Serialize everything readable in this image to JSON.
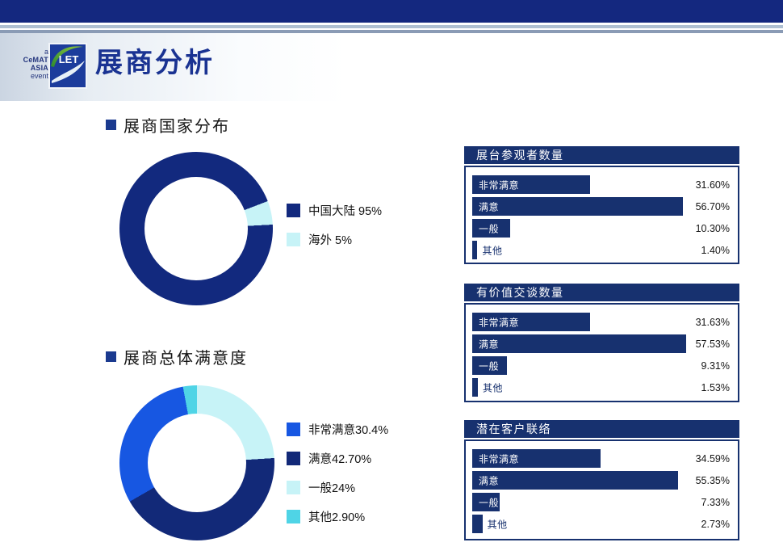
{
  "brand": {
    "prefix": "a",
    "name": "CeMAT ASIA",
    "suffix": "event",
    "badge": "LET"
  },
  "slide_title": "展商分析",
  "sections": {
    "country": "展商国家分布",
    "satisfaction": "展商总体满意度"
  },
  "chart_data": [
    {
      "type": "pie",
      "subtype": "donut",
      "title": "展商国家分布",
      "start_angle": 87,
      "draw_order": [
        0,
        1
      ],
      "slices": [
        {
          "label": "中国大陆",
          "value": 95,
          "display": "中国大陆 95%",
          "color": "#12297E"
        },
        {
          "label": "海外",
          "value": 5,
          "display": "海外 5%",
          "color": "#C7F3F7"
        }
      ]
    },
    {
      "type": "pie",
      "subtype": "donut",
      "title": "展商总体满意度",
      "start_angle": 0,
      "draw_order": [
        2,
        1,
        0,
        3
      ],
      "slices": [
        {
          "label": "非常满意",
          "value": 30.4,
          "display": "非常满意30.4%",
          "color": "#1757E2"
        },
        {
          "label": "满意",
          "value": 42.7,
          "display": "满意42.70%",
          "color": "#122978"
        },
        {
          "label": "一般",
          "value": 24,
          "display": "一般24%",
          "color": "#C7F3F7"
        },
        {
          "label": "其他",
          "value": 2.9,
          "display": "其他2.90%",
          "color": "#4FD4E6"
        }
      ]
    },
    {
      "type": "bar",
      "orientation": "horizontal",
      "title": "展台参观者数量",
      "categories": [
        "非常满意",
        "满意",
        "一般",
        "其他"
      ],
      "values": [
        31.6,
        56.7,
        10.3,
        1.4
      ],
      "value_labels": [
        "31.60%",
        "56.70%",
        "10.30%",
        "1.40%"
      ],
      "xlim": [
        0,
        71.4
      ],
      "bar_color": "#17316F"
    },
    {
      "type": "bar",
      "orientation": "horizontal",
      "title": "有价值交谈数量",
      "categories": [
        "非常满意",
        "满意",
        "一般",
        "其他"
      ],
      "values": [
        31.63,
        57.53,
        9.31,
        1.53
      ],
      "value_labels": [
        "31.63%",
        "57.53%",
        "9.31%",
        "1.53%"
      ],
      "xlim": [
        0,
        71.4
      ],
      "bar_color": "#17316F"
    },
    {
      "type": "bar",
      "orientation": "horizontal",
      "title": "潜在客户联络",
      "categories": [
        "非常满意",
        "满意",
        "一般",
        "其他"
      ],
      "values": [
        34.59,
        55.35,
        7.33,
        2.73
      ],
      "value_labels": [
        "34.59%",
        "55.35%",
        "7.33%",
        "2.73%"
      ],
      "xlim": [
        0,
        71.4
      ],
      "bar_color": "#17316F"
    }
  ],
  "colors": {
    "top_bar": "#14287F",
    "stripe_light": "#AFC0D2",
    "stripe_dark": "#8A9BB5",
    "title_navy": "#1A3392",
    "panel_navy": "#17316F",
    "donut_navy": "#12297E",
    "bright_blue": "#1757E2",
    "pale_cyan": "#C7F3F7",
    "turquoise": "#4FD4E6"
  }
}
